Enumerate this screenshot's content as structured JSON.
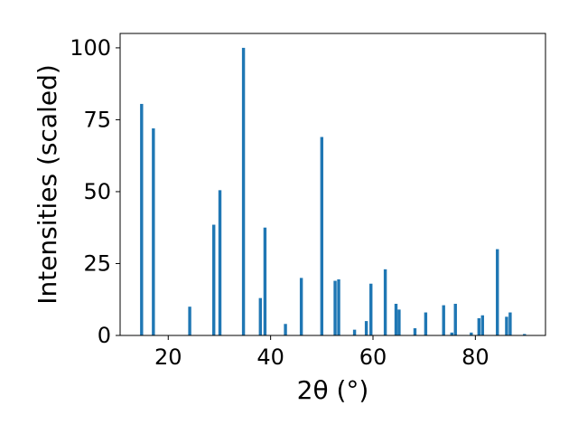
{
  "chart_data": {
    "type": "bar",
    "xlabel": "2θ (°)",
    "ylabel": "Intensities (scaled)",
    "xlim": [
      10.6,
      93.7
    ],
    "ylim": [
      0,
      105
    ],
    "x_ticks": [
      20,
      40,
      60,
      80
    ],
    "y_ticks": [
      0,
      25,
      50,
      75,
      100
    ],
    "bar_width": 0.6,
    "bar_color": "#1f77b4",
    "grid": false,
    "x": [
      14.8,
      17.1,
      24.2,
      28.9,
      30.1,
      34.7,
      38.0,
      38.9,
      42.9,
      46.0,
      50.0,
      52.6,
      53.3,
      56.4,
      58.7,
      59.6,
      62.4,
      64.5,
      65.1,
      68.2,
      70.3,
      73.8,
      75.4,
      76.1,
      79.2,
      80.7,
      81.4,
      84.3,
      86.1,
      86.8,
      89.6
    ],
    "values": [
      80.5,
      72.0,
      10.0,
      38.5,
      50.5,
      100.0,
      13.0,
      37.5,
      4.0,
      20.0,
      69.0,
      19.0,
      19.5,
      2.0,
      5.0,
      18.0,
      23.0,
      11.0,
      9.0,
      2.5,
      8.0,
      10.5,
      1.0,
      11.0,
      1.0,
      6.0,
      7.0,
      30.0,
      6.5,
      8.0,
      0.5
    ]
  }
}
